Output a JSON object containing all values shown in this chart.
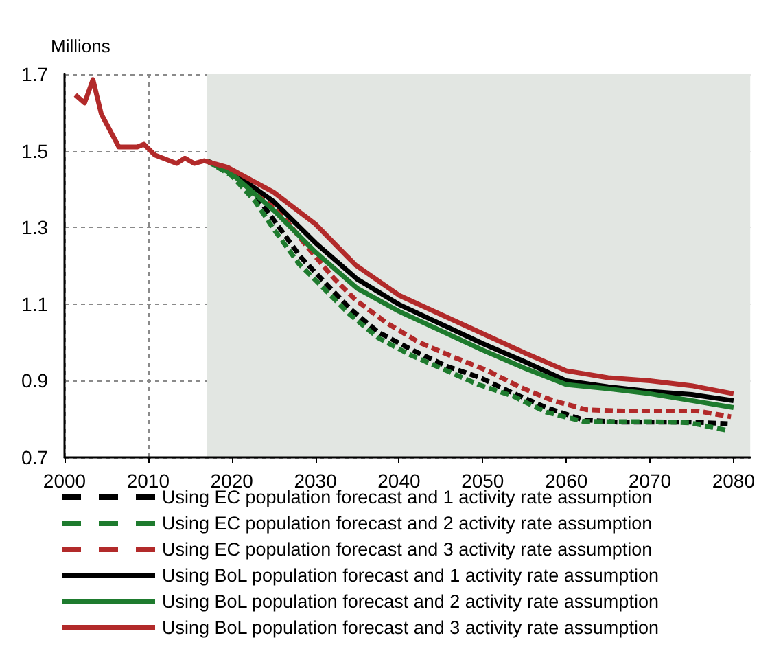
{
  "chart_data": {
    "type": "line",
    "ylabel": "Millions",
    "xlim": [
      2000,
      2082
    ],
    "xticks": [
      2000,
      2010,
      2020,
      2030,
      2040,
      2050,
      2060,
      2070,
      2080
    ],
    "ylim": [
      0.7,
      1.7
    ],
    "yticks": [
      0.7,
      0.9,
      1.1,
      1.3,
      1.5,
      1.7
    ],
    "grid": true,
    "legend": "bottom",
    "marker": "none",
    "bands": [
      {
        "axis": "x",
        "from": 2017,
        "to": 2082,
        "color": "#e2e6e2"
      }
    ],
    "series": [
      {
        "name": "Using EC population forecast and 1 activity rate assumption",
        "color": "#000000",
        "line_style": "dashed",
        "x": [
          2017,
          2020,
          2023,
          2028.2,
          2031,
          2034.2,
          2037.5,
          2041.6,
          2045.7,
          2049.7,
          2053.8,
          2057.6,
          2062,
          2066.1,
          2070.6,
          2074.9,
          2079.3
        ],
        "values": [
          1.474,
          1.44,
          1.38,
          1.224,
          1.159,
          1.087,
          1.027,
          0.98,
          0.938,
          0.908,
          0.866,
          0.83,
          0.798,
          0.792,
          0.792,
          0.792,
          0.788
        ]
      },
      {
        "name": "Using EC population forecast and 2 activity rate assumption",
        "color": "#1e7b2e",
        "line_style": "dashed",
        "x": [
          2017,
          2020,
          2022.8,
          2025,
          2028,
          2031,
          2034,
          2037.5,
          2041.3,
          2045.3,
          2049.5,
          2053.6,
          2057.6,
          2062,
          2066,
          2070.6,
          2074.9,
          2079.1
        ],
        "values": [
          1.474,
          1.435,
          1.368,
          1.296,
          1.206,
          1.141,
          1.075,
          1.012,
          0.968,
          0.93,
          0.89,
          0.86,
          0.818,
          0.794,
          0.793,
          0.793,
          0.79,
          0.771
        ]
      },
      {
        "name": "Using EC population forecast and 3 activity rate assumption",
        "color": "#b22a2a",
        "line_style": "dashed",
        "x": [
          2017,
          2020,
          2025,
          2029,
          2032.3,
          2034.8,
          2038.5,
          2042.4,
          2046.5,
          2050.6,
          2054.4,
          2058.4,
          2062.5,
          2066.9,
          2071.3,
          2075.7,
          2079.7
        ],
        "values": [
          1.474,
          1.445,
          1.36,
          1.25,
          1.165,
          1.111,
          1.051,
          1.0,
          0.962,
          0.926,
          0.884,
          0.848,
          0.824,
          0.821,
          0.821,
          0.821,
          0.806
        ]
      },
      {
        "name": "Using BoL population forecast and 1 activity rate assumption",
        "color": "#000000",
        "line_style": "solid",
        "x": [
          2017,
          2020,
          2025,
          2030,
          2035,
          2040,
          2050,
          2055,
          2060,
          2065,
          2070,
          2075,
          2080
        ],
        "values": [
          1.474,
          1.445,
          1.368,
          1.26,
          1.165,
          1.099,
          0.997,
          0.95,
          0.9,
          0.884,
          0.872,
          0.864,
          0.848
        ]
      },
      {
        "name": "Using BoL population forecast and 2 activity rate assumption",
        "color": "#1e7b2e",
        "line_style": "solid",
        "x": [
          2017,
          2020,
          2025,
          2030,
          2035,
          2040,
          2050,
          2055,
          2060,
          2065,
          2070,
          2080
        ],
        "values": [
          1.474,
          1.44,
          1.345,
          1.236,
          1.141,
          1.081,
          0.98,
          0.933,
          0.89,
          0.879,
          0.866,
          0.83
        ]
      },
      {
        "name": "Using BoL population forecast and 3 activity rate assumption",
        "color": "#b22a2a",
        "line_style": "solid",
        "x": [
          2001.3,
          2002.4,
          2003.4,
          2004.4,
          2006.5,
          2008.7,
          2009.5,
          2010.8,
          2013.4,
          2014.4,
          2015.5,
          2016.7,
          2019.5,
          2025,
          2030,
          2034.8,
          2040,
          2050,
          2055,
          2060,
          2065,
          2070,
          2075,
          2080
        ],
        "values": [
          1.646,
          1.625,
          1.686,
          1.596,
          1.51,
          1.51,
          1.517,
          1.489,
          1.467,
          1.481,
          1.467,
          1.474,
          1.457,
          1.392,
          1.309,
          1.202,
          1.123,
          1.023,
          0.973,
          0.926,
          0.908,
          0.9,
          0.887,
          0.866
        ]
      }
    ]
  }
}
